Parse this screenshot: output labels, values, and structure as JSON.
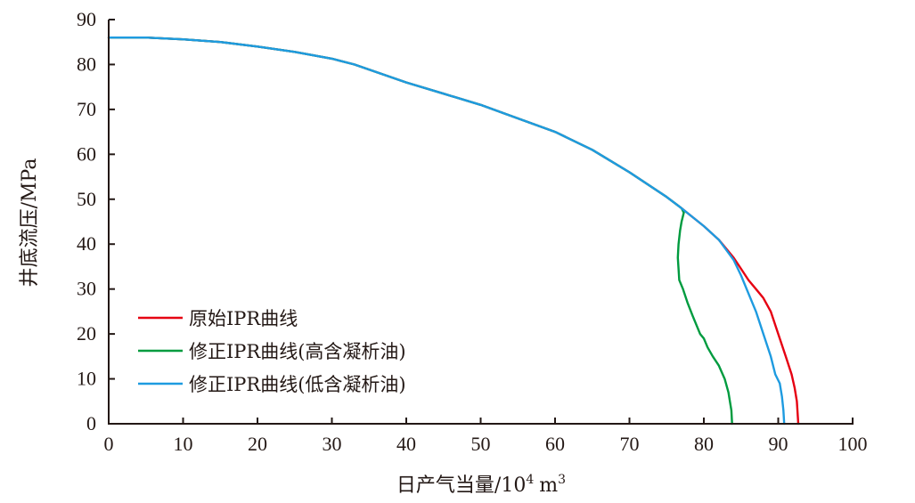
{
  "chart_data": {
    "type": "line",
    "title": "",
    "xlabel": "日产气当量/10",
    "xlabel_sup": "4",
    "xlabel_unit": "m",
    "xlabel_unit_sup": "3",
    "ylabel": "井底流压/MPa",
    "xlim": [
      0,
      100
    ],
    "ylim": [
      0,
      90
    ],
    "xticks": [
      "0",
      "10",
      "20",
      "30",
      "40",
      "50",
      "60",
      "70",
      "80",
      "90",
      "100"
    ],
    "yticks": [
      "0",
      "10",
      "20",
      "30",
      "40",
      "50",
      "60",
      "70",
      "80",
      "90"
    ],
    "grid": false,
    "legend_position": "bottom-left",
    "series": [
      {
        "name": "原始IPR曲线",
        "color": "#e60012",
        "points": [
          [
            0,
            86
          ],
          [
            5,
            86
          ],
          [
            10,
            85.6
          ],
          [
            15,
            85
          ],
          [
            20,
            84
          ],
          [
            25,
            82.8
          ],
          [
            30,
            81.3
          ],
          [
            33,
            80
          ],
          [
            40,
            76
          ],
          [
            45,
            73.5
          ],
          [
            50,
            71
          ],
          [
            55,
            68
          ],
          [
            60,
            65
          ],
          [
            65,
            61
          ],
          [
            70,
            56
          ],
          [
            75,
            50.5
          ],
          [
            77,
            48
          ],
          [
            80,
            44
          ],
          [
            82,
            41
          ],
          [
            84,
            37
          ],
          [
            85,
            34.5
          ],
          [
            86,
            32
          ],
          [
            87,
            30
          ],
          [
            88,
            28
          ],
          [
            89,
            25
          ],
          [
            90,
            20
          ],
          [
            91,
            15
          ],
          [
            91.8,
            11
          ],
          [
            92.2,
            8
          ],
          [
            92.5,
            5
          ],
          [
            92.7,
            0
          ]
        ]
      },
      {
        "name": "修正IPR曲线(高含凝析油)",
        "color": "#009b3f",
        "points": [
          [
            0,
            86
          ],
          [
            5,
            86
          ],
          [
            10,
            85.6
          ],
          [
            15,
            85
          ],
          [
            20,
            84
          ],
          [
            25,
            82.8
          ],
          [
            30,
            81.3
          ],
          [
            33,
            80
          ],
          [
            40,
            76
          ],
          [
            45,
            73.5
          ],
          [
            50,
            71
          ],
          [
            55,
            68
          ],
          [
            60,
            65
          ],
          [
            65,
            61
          ],
          [
            70,
            56
          ],
          [
            75,
            50.5
          ],
          [
            77,
            48
          ],
          [
            77.3,
            47
          ],
          [
            77,
            45
          ],
          [
            76.8,
            43
          ],
          [
            76.6,
            40
          ],
          [
            76.5,
            37
          ],
          [
            76.7,
            32
          ],
          [
            77.2,
            30
          ],
          [
            77.8,
            27
          ],
          [
            78.5,
            24
          ],
          [
            79.5,
            20
          ],
          [
            80,
            19
          ],
          [
            80.5,
            17
          ],
          [
            81.2,
            15
          ],
          [
            82,
            13
          ],
          [
            82.8,
            10
          ],
          [
            83.3,
            7
          ],
          [
            83.7,
            3
          ],
          [
            83.8,
            0
          ]
        ]
      },
      {
        "name": "修正IPR曲线(低含凝析油)",
        "color": "#1e9be0",
        "points": [
          [
            0,
            86
          ],
          [
            5,
            86
          ],
          [
            10,
            85.6
          ],
          [
            15,
            85
          ],
          [
            20,
            84
          ],
          [
            25,
            82.8
          ],
          [
            30,
            81.3
          ],
          [
            33,
            80
          ],
          [
            40,
            76
          ],
          [
            45,
            73.5
          ],
          [
            50,
            71
          ],
          [
            55,
            68
          ],
          [
            60,
            65
          ],
          [
            65,
            61
          ],
          [
            70,
            56
          ],
          [
            75,
            50.5
          ],
          [
            77,
            48
          ],
          [
            80,
            44
          ],
          [
            82,
            41
          ],
          [
            84,
            36.5
          ],
          [
            85,
            33
          ],
          [
            86,
            29
          ],
          [
            87,
            25
          ],
          [
            88,
            20
          ],
          [
            89,
            15
          ],
          [
            89.6,
            11
          ],
          [
            90.2,
            9
          ],
          [
            90.5,
            6
          ],
          [
            90.7,
            3
          ],
          [
            90.8,
            0
          ]
        ]
      }
    ]
  }
}
